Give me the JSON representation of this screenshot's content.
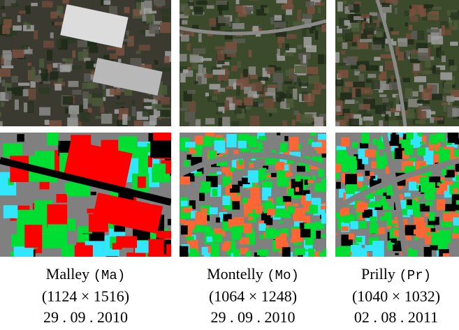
{
  "columns": [
    {
      "name": "Malley",
      "code": "(Ma)",
      "size": "(1124 × 1516)",
      "date": "29 . 09 . 2010"
    },
    {
      "name": "Montelly",
      "code": "(Mo)",
      "size": "(1064 × 1248)",
      "date": "29 . 09 . 2010"
    },
    {
      "name": "Prilly",
      "code": "(Pr)",
      "size": "(1040 × 1032)",
      "date": "02 . 08 . 2011"
    }
  ]
}
